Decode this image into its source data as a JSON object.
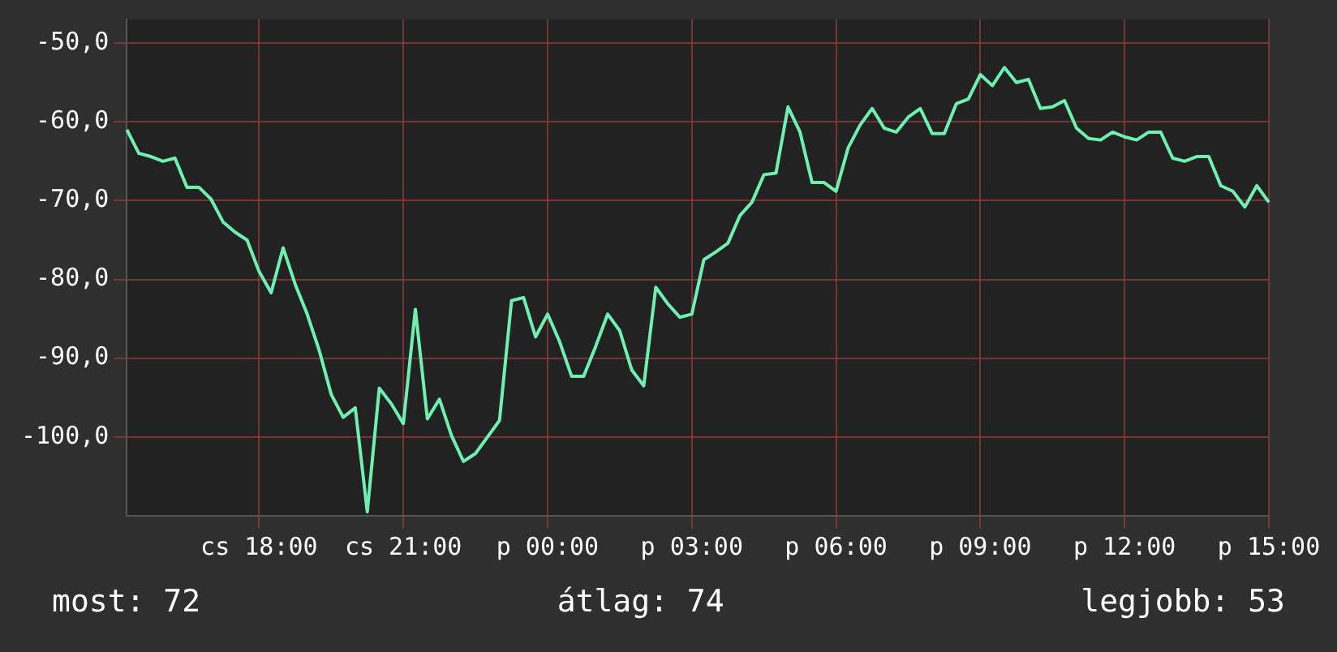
{
  "chart_data": {
    "type": "line",
    "categories": [
      null,
      null,
      null,
      null,
      null,
      null,
      null,
      null,
      null,
      null,
      null,
      "cs 18:00",
      null,
      null,
      null,
      null,
      null,
      null,
      null,
      null,
      null,
      null,
      null,
      "cs 21:00",
      null,
      null,
      null,
      null,
      null,
      null,
      null,
      null,
      null,
      null,
      null,
      "p 00:00",
      null,
      null,
      null,
      null,
      null,
      null,
      null,
      null,
      null,
      null,
      null,
      "p 03:00",
      null,
      null,
      null,
      null,
      null,
      null,
      null,
      null,
      null,
      null,
      null,
      "p 06:00",
      null,
      null,
      null,
      null,
      null,
      null,
      null,
      null,
      null,
      null,
      null,
      "p 09:00",
      null,
      null,
      null,
      null,
      null,
      null,
      null,
      null,
      null,
      null,
      null,
      "p 12:00",
      null,
      null,
      null,
      null,
      null,
      null,
      null,
      null,
      null,
      null,
      null,
      "p 15:00"
    ],
    "series": [
      {
        "color": "#6ef0b0",
        "values": [
          -61.0,
          -64.0,
          -64.4,
          -65.0,
          -64.6,
          -68.3,
          -68.3,
          -69.8,
          -72.7,
          -74.0,
          -75.0,
          -79.0,
          -81.7,
          -76.0,
          -80.6,
          -84.4,
          -89.0,
          -94.6,
          -97.5,
          -96.3,
          -109.5,
          -93.8,
          -95.8,
          -98.3,
          -83.8,
          -97.7,
          -95.2,
          -99.8,
          -103.1,
          -102.1,
          -100.0,
          -97.9,
          -82.7,
          -82.3,
          -87.3,
          -84.4,
          -87.9,
          -92.3,
          -92.3,
          -88.5,
          -84.4,
          -86.5,
          -91.5,
          -93.5,
          -81.0,
          -83.1,
          -84.8,
          -84.4,
          -77.5,
          -76.5,
          -75.4,
          -71.9,
          -70.2,
          -66.7,
          -66.5,
          -58.1,
          -61.3,
          -67.7,
          -67.7,
          -68.8,
          -63.3,
          -60.4,
          -58.3,
          -60.8,
          -61.3,
          -59.4,
          -58.3,
          -61.5,
          -61.5,
          -57.7,
          -57.1,
          -54.0,
          -55.4,
          -53.1,
          -55.0,
          -54.6,
          -58.3,
          -58.1,
          -57.3,
          -60.8,
          -62.1,
          -62.3,
          -61.3,
          -61.9,
          -62.3,
          -61.3,
          -61.3,
          -64.6,
          -65.0,
          -64.4,
          -64.4,
          -68.1,
          -68.8,
          -70.8,
          -68.1,
          -70.2
        ]
      }
    ],
    "ylim": [
      -110,
      -47
    ],
    "yticks": [
      {
        "value": -100,
        "label": "-100,0"
      },
      {
        "value": -90,
        "label": "-90,0"
      },
      {
        "value": -80,
        "label": "-80,0"
      },
      {
        "value": -70,
        "label": "-70,0"
      },
      {
        "value": -60,
        "label": "-60,0"
      },
      {
        "value": -50,
        "label": "-50,0"
      }
    ],
    "grid": true,
    "legend": false,
    "marker": "none",
    "line_style": "solid",
    "annotations": [
      "most: 72",
      "átlag: 74",
      "legjobb: 53"
    ]
  }
}
